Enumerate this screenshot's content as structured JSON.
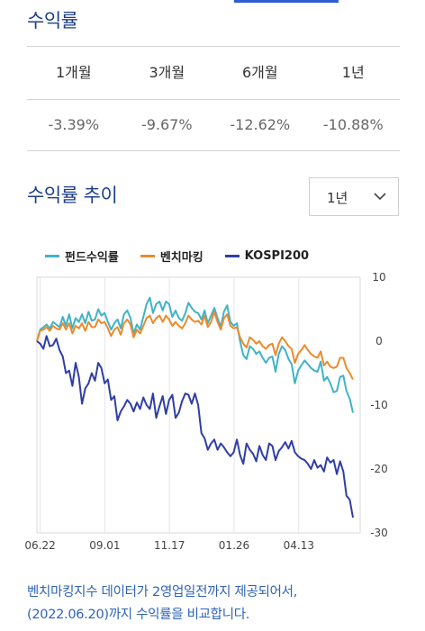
{
  "returns_section": {
    "title": "수익률",
    "headers": [
      "1개월",
      "3개월",
      "6개월",
      "1년"
    ],
    "values": [
      "-3.39%",
      "-9.67%",
      "-12.62%",
      "-10.88%"
    ]
  },
  "trend_section": {
    "title": "수익률 추이",
    "period_select": {
      "selected": "1년"
    }
  },
  "chart_data": {
    "type": "line",
    "x_tick_labels": [
      "06.22",
      "09.01",
      "11.17",
      "01.26",
      "04.13"
    ],
    "ylim": [
      -30,
      10
    ],
    "y_ticks": [
      10,
      0,
      -10,
      -20,
      -30
    ],
    "grid": "vertical",
    "legend_position": "top",
    "series": [
      {
        "name": "펀드수익률",
        "color": "#3fb3c9",
        "values": [
          0.0,
          1.8,
          2.2,
          2.6,
          2.0,
          3.0,
          2.6,
          2.2,
          3.8,
          2.4,
          4.2,
          2.0,
          3.6,
          3.0,
          4.2,
          2.8,
          4.6,
          3.2,
          3.4,
          5.0,
          4.0,
          4.4,
          3.0,
          1.8,
          2.8,
          3.4,
          2.0,
          4.2,
          4.8,
          3.6,
          1.2,
          2.6,
          1.8,
          3.8,
          5.8,
          6.8,
          4.4,
          5.8,
          6.2,
          4.8,
          6.2,
          5.8,
          3.8,
          4.8,
          3.6,
          3.2,
          4.4,
          6.0,
          5.2,
          4.6,
          4.4,
          3.4,
          4.8,
          2.8,
          4.0,
          5.2,
          3.6,
          2.2,
          4.6,
          5.6,
          3.0,
          2.4,
          2.8,
          0.0,
          -2.2,
          -2.8,
          -0.8,
          -1.2,
          -2.0,
          -1.6,
          -2.6,
          -3.4,
          -2.6,
          -2.4,
          -4.8,
          -2.0,
          -0.8,
          -1.4,
          -2.8,
          -3.6,
          -6.6,
          -4.6,
          -3.8,
          -3.0,
          -3.6,
          -4.2,
          -4.6,
          -4.8,
          -3.2,
          -6.2,
          -5.6,
          -6.6,
          -8.0,
          -7.8,
          -5.6,
          -5.4,
          -7.8,
          -9.0,
          -11.2
        ]
      },
      {
        "name": "벤치마킹",
        "color": "#ec8a2c",
        "values": [
          0.0,
          1.6,
          1.8,
          2.2,
          1.6,
          2.4,
          2.0,
          1.8,
          2.8,
          1.8,
          2.8,
          1.2,
          2.4,
          2.0,
          2.8,
          1.6,
          3.0,
          2.2,
          2.2,
          3.4,
          2.8,
          3.0,
          2.0,
          0.8,
          1.8,
          2.2,
          1.0,
          2.8,
          3.4,
          2.6,
          0.6,
          1.8,
          1.2,
          2.4,
          3.6,
          4.0,
          2.8,
          3.6,
          4.0,
          3.0,
          4.0,
          3.4,
          2.4,
          3.0,
          2.4,
          2.0,
          2.8,
          4.0,
          3.4,
          3.0,
          3.2,
          2.6,
          4.0,
          2.2,
          3.0,
          4.6,
          3.0,
          1.8,
          3.6,
          4.2,
          2.4,
          2.0,
          2.2,
          0.6,
          -0.4,
          -1.0,
          0.6,
          0.2,
          -0.4,
          0.0,
          -0.8,
          -1.2,
          -0.6,
          -0.4,
          -2.2,
          -0.4,
          0.6,
          0.0,
          -0.8,
          -1.2,
          -3.4,
          -2.0,
          -1.4,
          -0.6,
          -1.4,
          -2.0,
          -2.4,
          -2.6,
          -1.6,
          -3.8,
          -3.2,
          -4.0,
          -4.2,
          -4.0,
          -2.6,
          -2.6,
          -4.2,
          -5.0,
          -6.0
        ]
      },
      {
        "name": "KOSPI200",
        "color": "#2f3ea6",
        "values": [
          0.0,
          -0.4,
          -1.2,
          0.8,
          -0.8,
          -0.6,
          0.4,
          -1.4,
          -2.4,
          -5.0,
          -4.6,
          -7.0,
          -3.4,
          -5.6,
          -9.8,
          -7.4,
          -6.6,
          -5.0,
          -6.2,
          -3.4,
          -4.2,
          -6.6,
          -6.0,
          -9.2,
          -8.6,
          -12.4,
          -11.0,
          -10.2,
          -9.2,
          -9.8,
          -11.0,
          -9.6,
          -10.6,
          -8.8,
          -10.0,
          -10.6,
          -8.2,
          -12.0,
          -10.2,
          -8.6,
          -11.4,
          -9.2,
          -8.4,
          -12.0,
          -11.2,
          -9.4,
          -8.2,
          -8.4,
          -9.8,
          -8.2,
          -10.0,
          -14.4,
          -15.2,
          -17.0,
          -16.0,
          -15.4,
          -17.0,
          -16.0,
          -16.6,
          -17.4,
          -18.0,
          -17.4,
          -15.4,
          -17.8,
          -19.2,
          -16.0,
          -17.0,
          -17.6,
          -18.8,
          -16.4,
          -17.8,
          -18.6,
          -16.0,
          -16.4,
          -18.6,
          -17.2,
          -16.6,
          -15.8,
          -16.8,
          -15.6,
          -17.4,
          -18.0,
          -18.4,
          -18.6,
          -19.2,
          -20.0,
          -18.6,
          -19.8,
          -19.4,
          -20.4,
          -18.2,
          -19.0,
          -18.6,
          -20.8,
          -18.8,
          -20.4,
          -24.2,
          -24.8,
          -27.6
        ]
      }
    ]
  },
  "footnote": {
    "line1": "벤치마킹지수 데이터가 2영업일전까지 제공되어서,",
    "line2": "(2022.06.20)까지 수익률을 비교합니다."
  }
}
